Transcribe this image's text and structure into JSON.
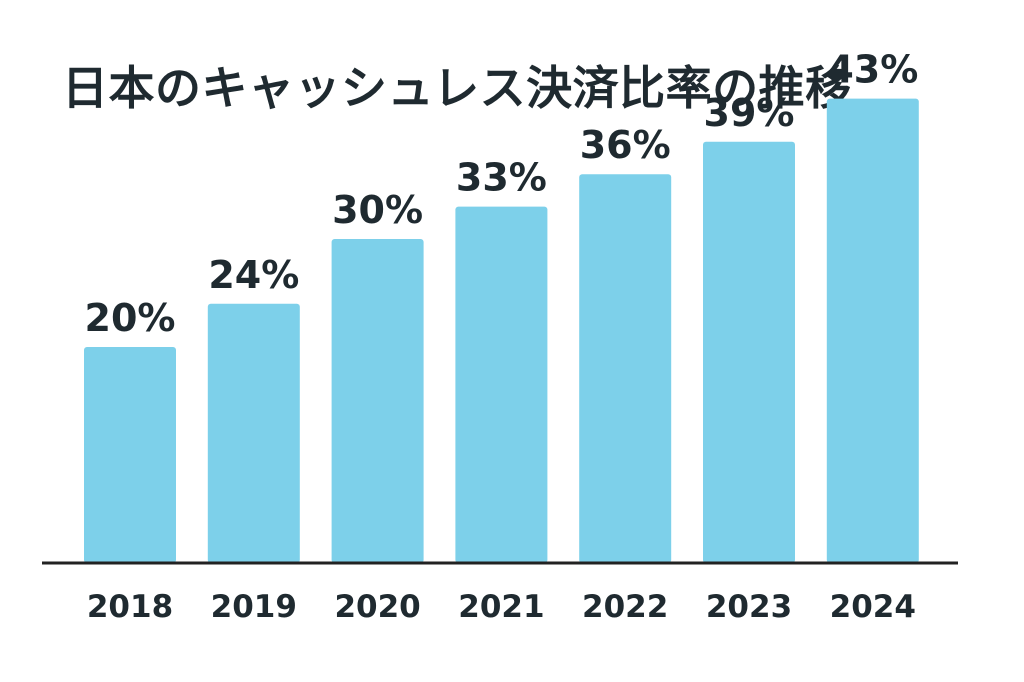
{
  "chart_data": {
    "type": "bar",
    "title": "日本のキャッシュレス決済比率の推移",
    "categories": [
      "2018",
      "2019",
      "2020",
      "2021",
      "2022",
      "2023",
      "2024"
    ],
    "values": [
      20,
      24,
      30,
      33,
      36,
      39,
      43
    ],
    "data_labels": [
      "20%",
      "24%",
      "30%",
      "33%",
      "36%",
      "39%",
      "43%"
    ],
    "unit": "%",
    "bar_color": "#7dd0ea",
    "grid": false,
    "legend": "none"
  }
}
